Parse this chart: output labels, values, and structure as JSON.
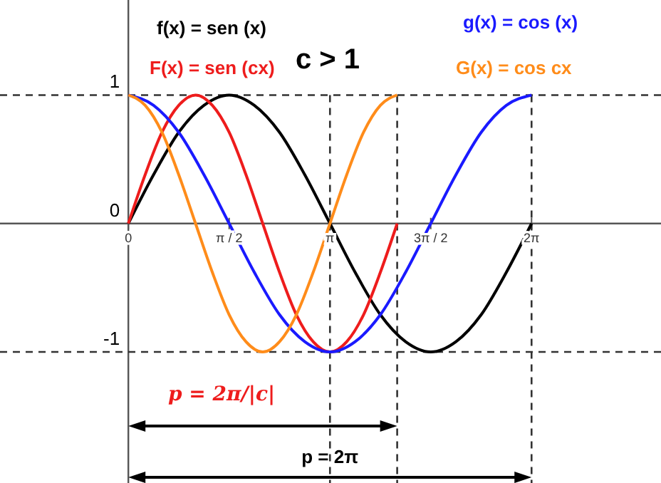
{
  "chart_data": {
    "type": "line",
    "xlim": [
      -2.0,
      8.3
    ],
    "ylim": [
      -2.02,
      1.74
    ],
    "xticks": [
      0,
      {
        "value": 1.571,
        "label": "π / 2"
      },
      {
        "value": 3.142,
        "label": "π"
      },
      {
        "value": 4.712,
        "label": "3π / 2"
      },
      {
        "value": 6.283,
        "label": "2π"
      }
    ],
    "yticks": [
      1,
      0,
      -1
    ],
    "series": [
      {
        "name": "f(x) = sen (x)",
        "color": "#000000",
        "x": [
          0,
          0.393,
          0.785,
          1.178,
          1.571,
          1.963,
          2.356,
          2.749,
          3.142,
          3.534,
          3.927,
          4.32,
          4.712,
          5.105,
          5.498,
          5.89,
          6.283
        ],
        "values": [
          0,
          0.38,
          0.71,
          0.92,
          1,
          0.92,
          0.71,
          0.38,
          0,
          -0.38,
          -0.71,
          -0.92,
          -1,
          -0.92,
          -0.71,
          -0.38,
          0
        ]
      },
      {
        "name": "F(x) = sen (cx)",
        "color": "#ee1c1c",
        "x": [
          0,
          0.262,
          0.524,
          0.785,
          1.047,
          1.309,
          1.571,
          1.833,
          2.094,
          2.356,
          2.618,
          2.88,
          3.142,
          3.403,
          3.665,
          3.927,
          4.189
        ],
        "values": [
          0,
          0.38,
          0.71,
          0.92,
          1,
          0.92,
          0.71,
          0.38,
          0,
          -0.38,
          -0.71,
          -0.92,
          -1,
          -0.92,
          -0.71,
          -0.38,
          0
        ]
      },
      {
        "name": "g(x) = cos (x)",
        "color": "#1a1aff",
        "x": [
          0,
          0.393,
          0.785,
          1.178,
          1.571,
          1.963,
          2.356,
          2.749,
          3.142,
          3.534,
          3.927,
          4.32,
          4.712,
          5.105,
          5.498,
          5.89,
          6.283
        ],
        "values": [
          1,
          0.92,
          0.71,
          0.38,
          0,
          -0.38,
          -0.71,
          -0.92,
          -1,
          -0.92,
          -0.71,
          -0.38,
          0,
          0.38,
          0.71,
          0.92,
          1
        ]
      },
      {
        "name": "G(x) = cos cx",
        "color": "#ff8c1a",
        "x": [
          0,
          0.262,
          0.524,
          0.785,
          1.047,
          1.309,
          1.571,
          1.833,
          2.094,
          2.356,
          2.618,
          2.88,
          3.142,
          3.403,
          3.665,
          3.927,
          4.189
        ],
        "values": [
          1,
          0.92,
          0.71,
          0.38,
          0,
          -0.38,
          -0.71,
          -0.92,
          -1,
          -0.92,
          -0.71,
          -0.38,
          0,
          0.38,
          0.71,
          0.92,
          1
        ]
      }
    ],
    "ref_lines": [
      {
        "axis": "y",
        "value": 1,
        "line_style": "dashed"
      },
      {
        "axis": "y",
        "value": -1,
        "line_style": "dashed"
      },
      {
        "axis": "x",
        "value": 4.189,
        "line_style": "dashed"
      },
      {
        "axis": "x",
        "value": 6.283,
        "line_style": "dashed"
      },
      {
        "axis": "x",
        "value": 3.142,
        "line_style": "dashed"
      }
    ],
    "annotations": [
      "c > 1",
      "p = 2π/|c|",
      "p = 2π"
    ],
    "legend": "top",
    "line_style": "solid",
    "marker": "none",
    "grid": false
  }
}
